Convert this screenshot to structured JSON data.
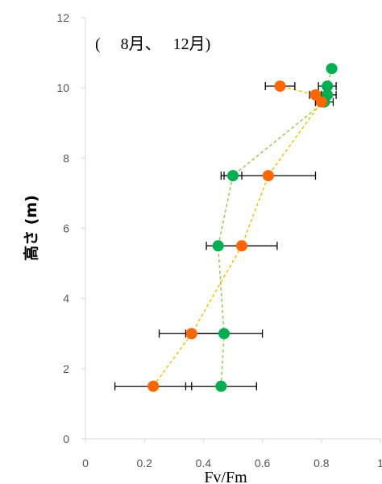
{
  "chart_data": {
    "type": "scatter",
    "annotation": "(　 8月、　 12月)",
    "xlabel": "Fv/Fm",
    "ylabel": "高さ (m)",
    "xlim": [
      0,
      1
    ],
    "ylim": [
      0,
      12
    ],
    "xticks": [
      {
        "value": 0,
        "label": "0"
      },
      {
        "value": 0.2,
        "label": "0.2"
      },
      {
        "value": 0.4,
        "label": "0.4"
      },
      {
        "value": 0.6,
        "label": "0.6"
      },
      {
        "value": 0.8,
        "label": "0.8"
      },
      {
        "value": 1,
        "label": "1"
      }
    ],
    "yticks": [
      {
        "value": 0,
        "label": "0"
      },
      {
        "value": 2,
        "label": "2"
      },
      {
        "value": 4,
        "label": "4"
      },
      {
        "value": 6,
        "label": "6"
      },
      {
        "value": 8,
        "label": "8"
      },
      {
        "value": 10,
        "label": "10"
      },
      {
        "value": 12,
        "label": "12"
      }
    ],
    "grid": false,
    "series": [
      {
        "color": "#00b050",
        "line_color": "#92d050",
        "points": [
          {
            "x": 0.46,
            "y": 1.5,
            "err": 0.12
          },
          {
            "x": 0.47,
            "y": 3.0,
            "err": 0.13
          },
          {
            "x": 0.45,
            "y": 5.5,
            "err": 0.01
          },
          {
            "x": 0.5,
            "y": 7.5,
            "err": 0.03
          },
          {
            "x": 0.81,
            "y": 9.6,
            "err": 0.03
          },
          {
            "x": 0.82,
            "y": 9.8,
            "err": 0.03
          },
          {
            "x": 0.82,
            "y": 10.05,
            "err": 0.03
          },
          {
            "x": 0.835,
            "y": 10.55,
            "err": 0.005
          }
        ]
      },
      {
        "color": "#ff6600",
        "line_color": "#ffc000",
        "points": [
          {
            "x": 0.23,
            "y": 1.5,
            "err": 0.13
          },
          {
            "x": 0.36,
            "y": 3.0,
            "err": 0.11
          },
          {
            "x": 0.53,
            "y": 5.5,
            "err": 0.12
          },
          {
            "x": 0.62,
            "y": 7.5,
            "err": 0.16
          },
          {
            "x": 0.8,
            "y": 9.6,
            "err": 0.02
          },
          {
            "x": 0.78,
            "y": 9.8,
            "err": 0.02
          },
          {
            "x": 0.66,
            "y": 10.05,
            "err": 0.05
          }
        ]
      }
    ]
  }
}
